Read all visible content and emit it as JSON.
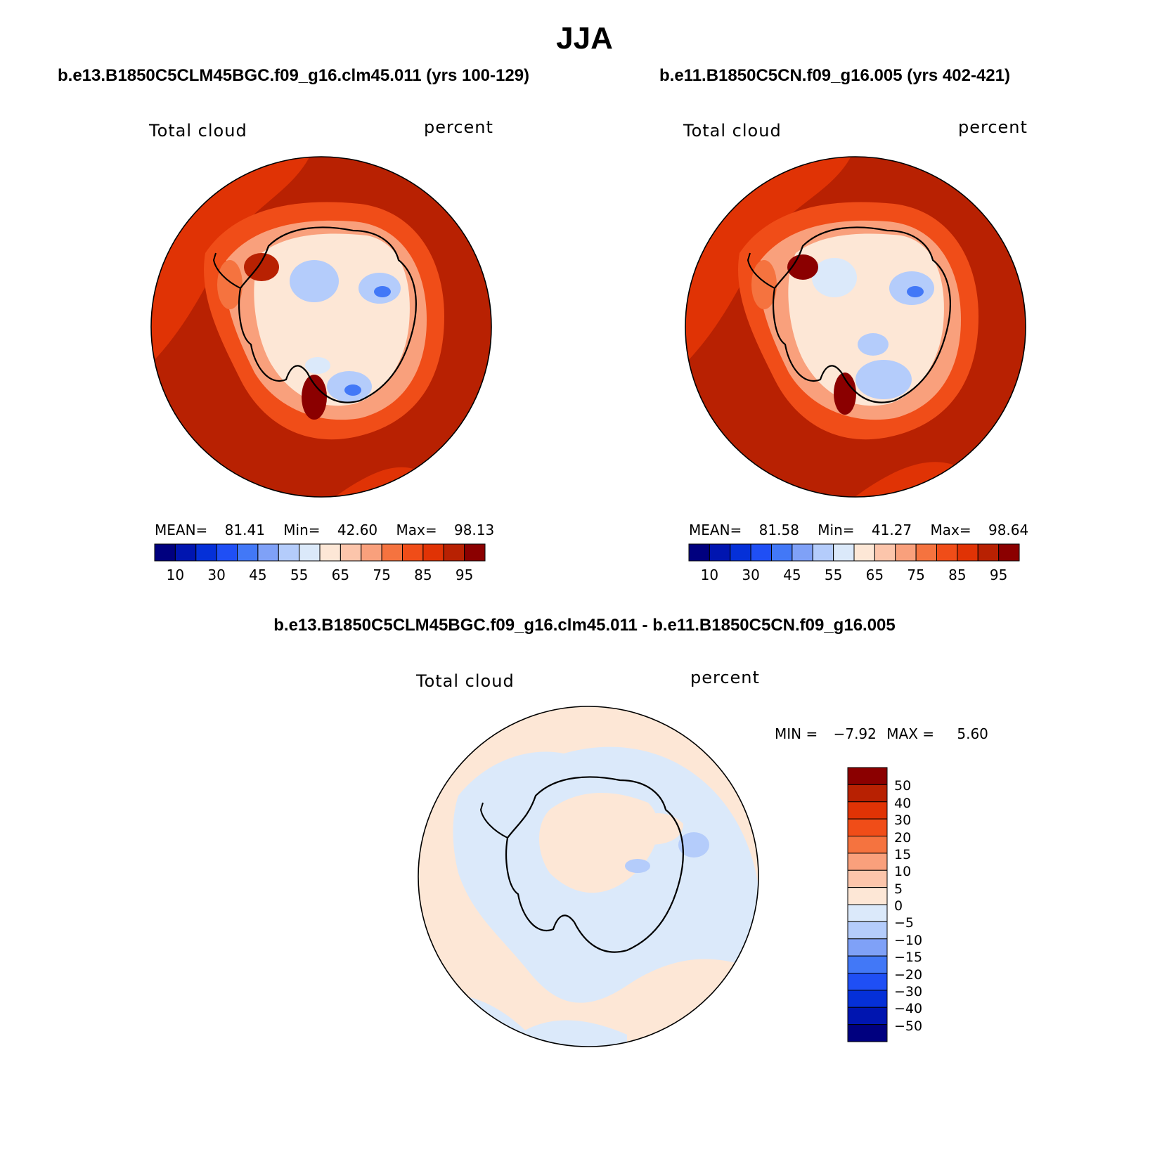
{
  "figure": {
    "title": "JJA"
  },
  "panels": [
    {
      "title": "b.e13.B1850C5CLM45BGC.f09_g16.clm45.011 (yrs 100-129)",
      "left_label": "Total cloud",
      "right_label": "percent",
      "mean_label": "MEAN=",
      "mean_value": "81.41",
      "min_label": "Min=",
      "min_value": "42.60",
      "max_label": "Max=",
      "max_value": "98.13"
    },
    {
      "title": "b.e11.B1850C5CN.f09_g16.005 (yrs 402-421)",
      "left_label": "Total cloud",
      "right_label": "percent",
      "mean_label": "MEAN=",
      "mean_value": "81.58",
      "min_label": "Min=",
      "min_value": "41.27",
      "max_label": "Max=",
      "max_value": "98.64"
    }
  ],
  "diff_panel": {
    "title": "b.e13.B1850C5CLM45BGC.f09_g16.clm45.011 - b.e11.B1850C5CN.f09_g16.005",
    "left_label": "Total cloud",
    "right_label": "percent",
    "min_label": "MIN =",
    "min_value": "−7.92",
    "max_label": "MAX =",
    "max_value": "5.60"
  },
  "colorbar_main": {
    "colors": [
      "#00007f",
      "#0015b0",
      "#0530d8",
      "#1f4ff5",
      "#4278f7",
      "#7fa1f7",
      "#b4ccfb",
      "#dbe9fa",
      "#fde7d6",
      "#fcc5ab",
      "#f9a07c",
      "#f5733f",
      "#f04d18",
      "#e03305",
      "#b82102",
      "#8b0000"
    ],
    "tick_labels": [
      "10",
      "30",
      "45",
      "55",
      "65",
      "75",
      "85",
      "95"
    ]
  },
  "colorbar_diff": {
    "colors_top_to_bottom": [
      "#8b0000",
      "#b82102",
      "#e03305",
      "#f04d18",
      "#f5733f",
      "#f9a07c",
      "#fcc5ab",
      "#fde7d6",
      "#dbe9fa",
      "#b4ccfb",
      "#7fa1f7",
      "#4278f7",
      "#1f4ff5",
      "#0530d8",
      "#0015b0",
      "#00007f"
    ],
    "tick_labels": [
      "50",
      "40",
      "30",
      "20",
      "15",
      "10",
      "5",
      "0",
      "−5",
      "−10",
      "−15",
      "−20",
      "−30",
      "−40",
      "−50"
    ]
  }
}
